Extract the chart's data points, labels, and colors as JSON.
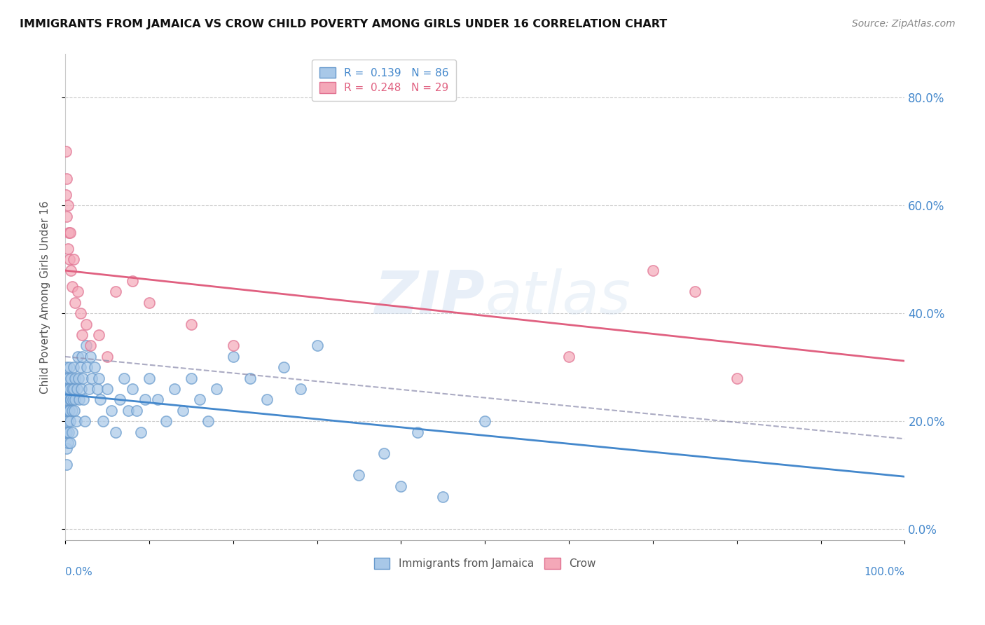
{
  "title": "IMMIGRANTS FROM JAMAICA VS CROW CHILD POVERTY AMONG GIRLS UNDER 16 CORRELATION CHART",
  "source": "Source: ZipAtlas.com",
  "ylabel": "Child Poverty Among Girls Under 16",
  "yticks": [
    "0.0%",
    "20.0%",
    "40.0%",
    "60.0%",
    "80.0%"
  ],
  "ytick_vals": [
    0.0,
    0.2,
    0.4,
    0.6,
    0.8
  ],
  "xlim": [
    0.0,
    1.0
  ],
  "ylim": [
    -0.02,
    0.88
  ],
  "legend_r1": "R =  0.139   N = 86",
  "legend_r2": "R =  0.248   N = 29",
  "watermark": "ZIPatlas",
  "blue_color": "#a8c8e8",
  "pink_color": "#f4a8b8",
  "blue_edge_color": "#6699cc",
  "pink_edge_color": "#e07090",
  "blue_line_color": "#4488cc",
  "pink_line_color": "#e06080",
  "dashed_line_color": "#8888aa",
  "jamaica_x": [
    0.001,
    0.001,
    0.001,
    0.001,
    0.002,
    0.002,
    0.002,
    0.002,
    0.002,
    0.002,
    0.003,
    0.003,
    0.003,
    0.003,
    0.004,
    0.004,
    0.004,
    0.005,
    0.005,
    0.005,
    0.006,
    0.006,
    0.006,
    0.007,
    0.007,
    0.008,
    0.008,
    0.008,
    0.009,
    0.01,
    0.01,
    0.011,
    0.012,
    0.012,
    0.013,
    0.014,
    0.015,
    0.016,
    0.017,
    0.018,
    0.019,
    0.02,
    0.021,
    0.022,
    0.023,
    0.025,
    0.026,
    0.028,
    0.03,
    0.032,
    0.035,
    0.038,
    0.04,
    0.042,
    0.045,
    0.05,
    0.055,
    0.06,
    0.065,
    0.07,
    0.075,
    0.08,
    0.085,
    0.09,
    0.095,
    0.1,
    0.11,
    0.12,
    0.13,
    0.14,
    0.15,
    0.16,
    0.17,
    0.18,
    0.2,
    0.22,
    0.24,
    0.26,
    0.28,
    0.3,
    0.35,
    0.38,
    0.4,
    0.42,
    0.45,
    0.5
  ],
  "jamaica_y": [
    0.25,
    0.28,
    0.22,
    0.18,
    0.3,
    0.26,
    0.22,
    0.18,
    0.15,
    0.12,
    0.28,
    0.24,
    0.2,
    0.16,
    0.26,
    0.22,
    0.18,
    0.3,
    0.26,
    0.22,
    0.24,
    0.2,
    0.16,
    0.28,
    0.24,
    0.26,
    0.22,
    0.18,
    0.24,
    0.3,
    0.26,
    0.22,
    0.28,
    0.24,
    0.2,
    0.26,
    0.32,
    0.28,
    0.24,
    0.3,
    0.26,
    0.32,
    0.28,
    0.24,
    0.2,
    0.34,
    0.3,
    0.26,
    0.32,
    0.28,
    0.3,
    0.26,
    0.28,
    0.24,
    0.2,
    0.26,
    0.22,
    0.18,
    0.24,
    0.28,
    0.22,
    0.26,
    0.22,
    0.18,
    0.24,
    0.28,
    0.24,
    0.2,
    0.26,
    0.22,
    0.28,
    0.24,
    0.2,
    0.26,
    0.32,
    0.28,
    0.24,
    0.3,
    0.26,
    0.34,
    0.1,
    0.14,
    0.08,
    0.18,
    0.06,
    0.2
  ],
  "crow_x": [
    0.001,
    0.001,
    0.002,
    0.002,
    0.003,
    0.003,
    0.004,
    0.005,
    0.006,
    0.007,
    0.008,
    0.01,
    0.012,
    0.015,
    0.018,
    0.02,
    0.025,
    0.03,
    0.04,
    0.05,
    0.06,
    0.08,
    0.1,
    0.15,
    0.2,
    0.6,
    0.7,
    0.75,
    0.8
  ],
  "crow_y": [
    0.7,
    0.62,
    0.65,
    0.58,
    0.6,
    0.52,
    0.55,
    0.5,
    0.55,
    0.48,
    0.45,
    0.5,
    0.42,
    0.44,
    0.4,
    0.36,
    0.38,
    0.34,
    0.36,
    0.32,
    0.44,
    0.46,
    0.42,
    0.38,
    0.34,
    0.32,
    0.48,
    0.44,
    0.28
  ]
}
